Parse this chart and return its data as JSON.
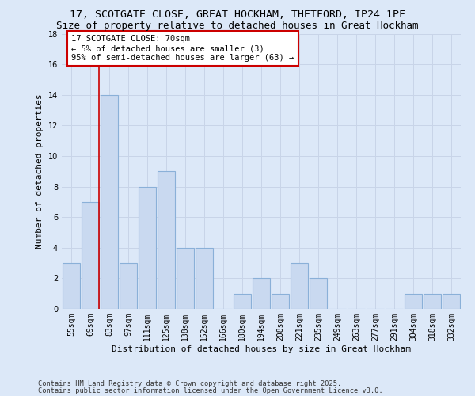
{
  "title_line1": "17, SCOTGATE CLOSE, GREAT HOCKHAM, THETFORD, IP24 1PF",
  "title_line2": "Size of property relative to detached houses in Great Hockham",
  "xlabel": "Distribution of detached houses by size in Great Hockham",
  "ylabel": "Number of detached properties",
  "categories": [
    "55sqm",
    "69sqm",
    "83sqm",
    "97sqm",
    "111sqm",
    "125sqm",
    "138sqm",
    "152sqm",
    "166sqm",
    "180sqm",
    "194sqm",
    "208sqm",
    "221sqm",
    "235sqm",
    "249sqm",
    "263sqm",
    "277sqm",
    "291sqm",
    "304sqm",
    "318sqm",
    "332sqm"
  ],
  "values": [
    3,
    7,
    14,
    3,
    8,
    9,
    4,
    4,
    0,
    1,
    2,
    1,
    3,
    2,
    0,
    0,
    0,
    0,
    1,
    1,
    1
  ],
  "bar_color": "#c9d9f0",
  "bar_edge_color": "#8ab0d8",
  "bar_edge_width": 0.8,
  "annotation_text": "17 SCOTGATE CLOSE: 70sqm\n← 5% of detached houses are smaller (3)\n95% of semi-detached houses are larger (63) →",
  "annotation_box_color": "#ffffff",
  "annotation_box_edge_color": "#cc0000",
  "grid_color": "#c8d4e8",
  "background_color": "#dce8f8",
  "plot_bg_color": "#dce8f8",
  "ylim": [
    0,
    18
  ],
  "yticks": [
    0,
    2,
    4,
    6,
    8,
    10,
    12,
    14,
    16,
    18
  ],
  "footer_line1": "Contains HM Land Registry data © Crown copyright and database right 2025.",
  "footer_line2": "Contains public sector information licensed under the Open Government Licence v3.0.",
  "title_fontsize": 9.5,
  "subtitle_fontsize": 9,
  "axis_label_fontsize": 8,
  "tick_fontsize": 7,
  "annotation_fontsize": 7.5,
  "footer_fontsize": 6.2
}
